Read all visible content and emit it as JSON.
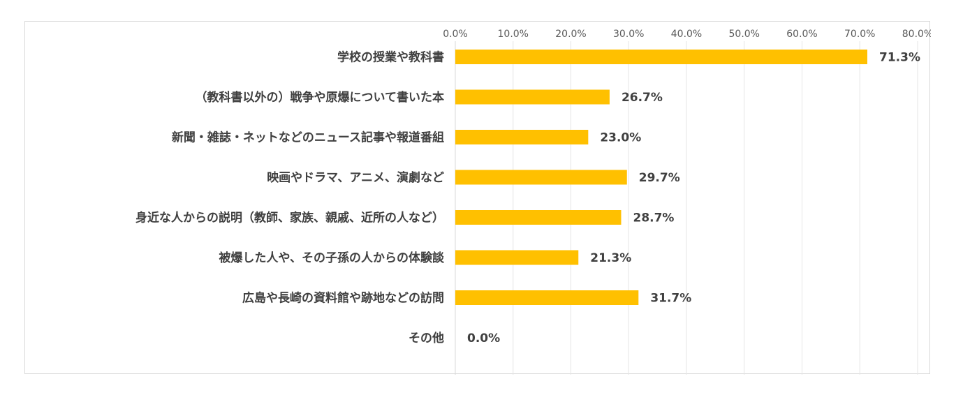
{
  "chart_data": {
    "type": "bar",
    "orientation": "horizontal",
    "title": "",
    "xlabel": "",
    "ylabel": "",
    "xlim": [
      0,
      80
    ],
    "tick_values": [
      0,
      10,
      20,
      30,
      40,
      50,
      60,
      70,
      80
    ],
    "tick_labels": [
      "0.0%",
      "10.0%",
      "20.0%",
      "30.0%",
      "40.0%",
      "50.0%",
      "60.0%",
      "70.0%",
      "80.0%"
    ],
    "axis_position": "top",
    "grid": true,
    "legend": "none",
    "bar_color": "#FFC000",
    "categories": [
      "学校の授業や教科書",
      "（教科書以外の）戦争や原爆について書いた本",
      "新聞・雑誌・ネットなどのニュース記事や報道番組",
      "映画やドラマ、アニメ、演劇など",
      "身近な人からの説明（教師、家族、親戚、近所の人など）",
      "被爆した人や、その子孫の人からの体験談",
      "広島や長崎の資料館や跡地などの訪問",
      "その他"
    ],
    "values": [
      71.3,
      26.7,
      23.0,
      29.7,
      28.7,
      21.3,
      31.7,
      0.0
    ],
    "data_labels": [
      "71.3%",
      "26.7%",
      "23.0%",
      "29.7%",
      "28.7%",
      "21.3%",
      "31.7%",
      "0.0%"
    ]
  }
}
